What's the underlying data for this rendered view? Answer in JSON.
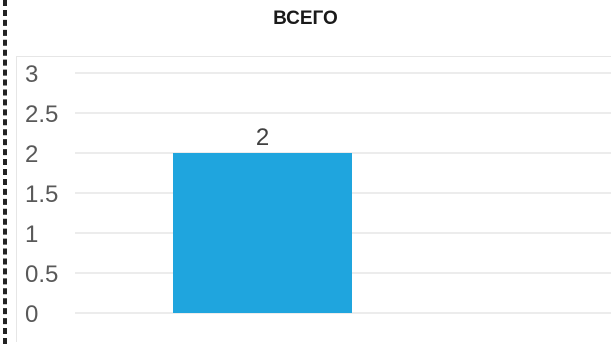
{
  "chart_data": {
    "type": "bar",
    "title": "ВСЕГО",
    "categories": [
      ""
    ],
    "values": [
      2
    ],
    "data_labels": [
      "2"
    ],
    "xlabel": "",
    "ylabel": "",
    "ylim": [
      0,
      3
    ],
    "yticks": [
      "0",
      "0.5",
      "1",
      "1.5",
      "2",
      "2.5",
      "3"
    ],
    "grid": true,
    "legend": "none",
    "bar_color": "#1fa5de",
    "grid_color": "#d9d9d9"
  }
}
